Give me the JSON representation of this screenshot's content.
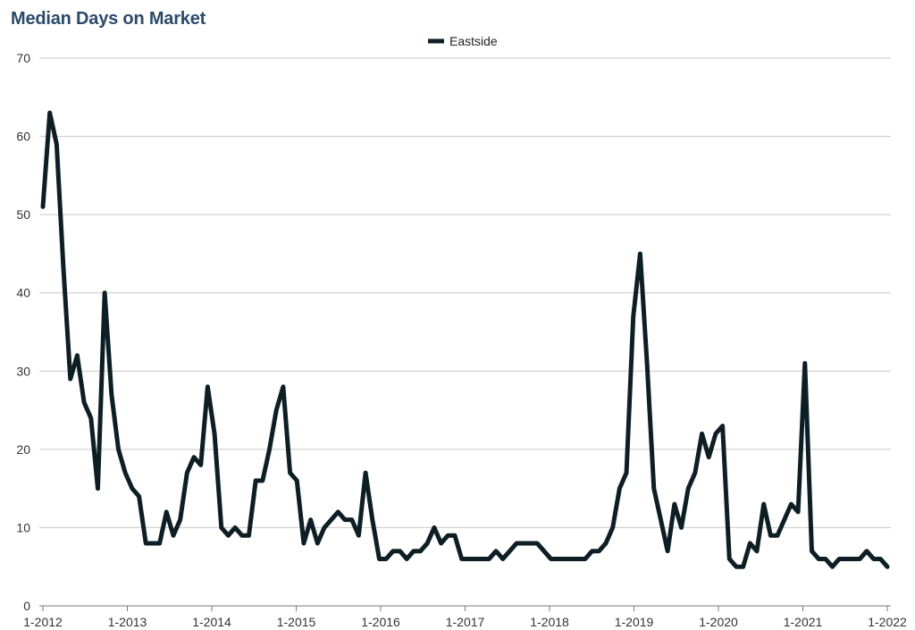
{
  "chart_data": {
    "type": "line",
    "title": "Median Days on Market",
    "xlabel": "",
    "ylabel": "",
    "ylim": [
      0,
      70
    ],
    "y_ticks": [
      0,
      10,
      20,
      30,
      40,
      50,
      60,
      70
    ],
    "x_tick_labels": [
      "1-2012",
      "1-2013",
      "1-2014",
      "1-2015",
      "1-2016",
      "1-2017",
      "1-2018",
      "1-2019",
      "1-2020",
      "1-2021",
      "1-2022"
    ],
    "x_start_label": "1-2012",
    "x_end_label": "1-2022",
    "grid": true,
    "legend_position": "top-center",
    "series": [
      {
        "name": "Eastside",
        "color": "#0d1f24",
        "values": [
          51,
          63,
          59,
          43,
          29,
          32,
          26,
          24,
          15,
          40,
          27,
          20,
          17,
          15,
          14,
          8,
          8,
          8,
          12,
          9,
          11,
          17,
          19,
          18,
          28,
          22,
          10,
          9,
          10,
          9,
          9,
          16,
          16,
          20,
          25,
          28,
          17,
          16,
          8,
          11,
          8,
          10,
          11,
          12,
          11,
          11,
          9,
          17,
          11,
          6,
          6,
          7,
          7,
          6,
          7,
          7,
          8,
          10,
          8,
          9,
          9,
          6,
          6,
          6,
          6,
          6,
          7,
          6,
          7,
          8,
          8,
          8,
          8,
          7,
          6,
          6,
          6,
          6,
          6,
          6,
          7,
          7,
          8,
          10,
          15,
          17,
          37,
          45,
          31,
          15,
          11,
          7,
          13,
          10,
          15,
          17,
          22,
          19,
          22,
          23,
          6,
          5,
          5,
          8,
          7,
          13,
          9,
          9,
          11,
          13,
          12,
          31,
          7,
          6,
          6,
          5,
          6,
          6,
          6,
          6,
          7,
          6,
          6,
          5
        ]
      }
    ]
  }
}
